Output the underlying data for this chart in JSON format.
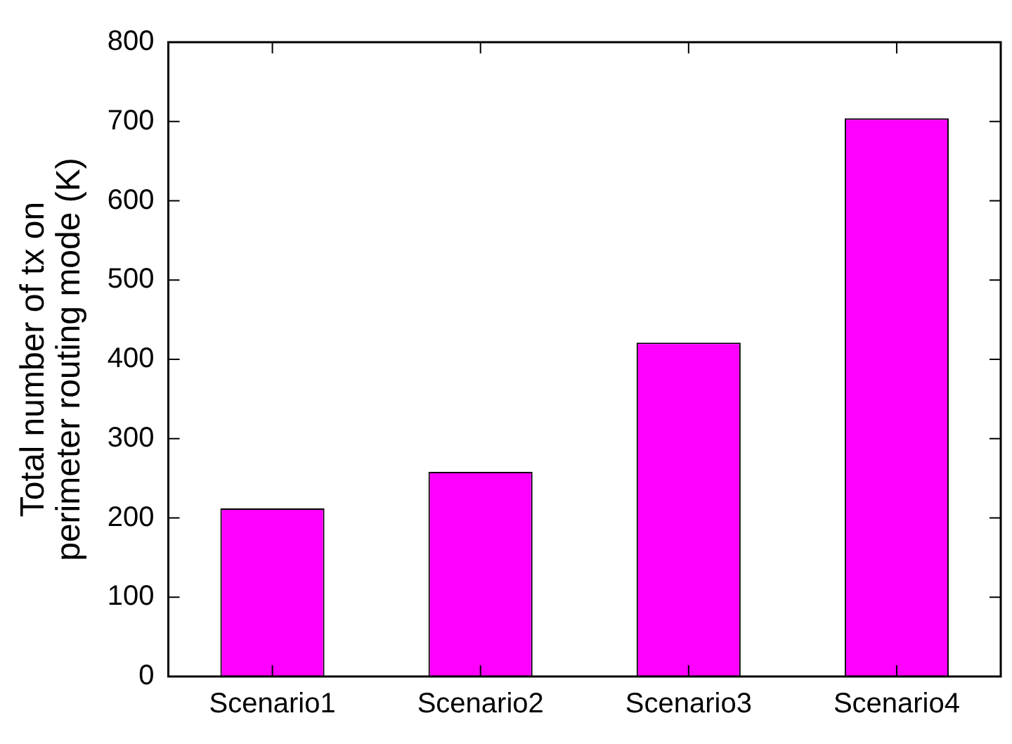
{
  "chart_data": {
    "type": "bar",
    "ylabel": "Total number of tx on perimeter routing mode (K)",
    "categories": [
      "Scenario1",
      "Scenario2",
      "Scenario3",
      "Scenario4"
    ],
    "values": [
      212,
      258,
      421,
      704
    ],
    "color": "#ff00ff",
    "ylim": [
      0,
      800
    ],
    "yticks": [
      0,
      100,
      200,
      300,
      400,
      500,
      600,
      700,
      800
    ],
    "grid": false,
    "legend": false
  }
}
